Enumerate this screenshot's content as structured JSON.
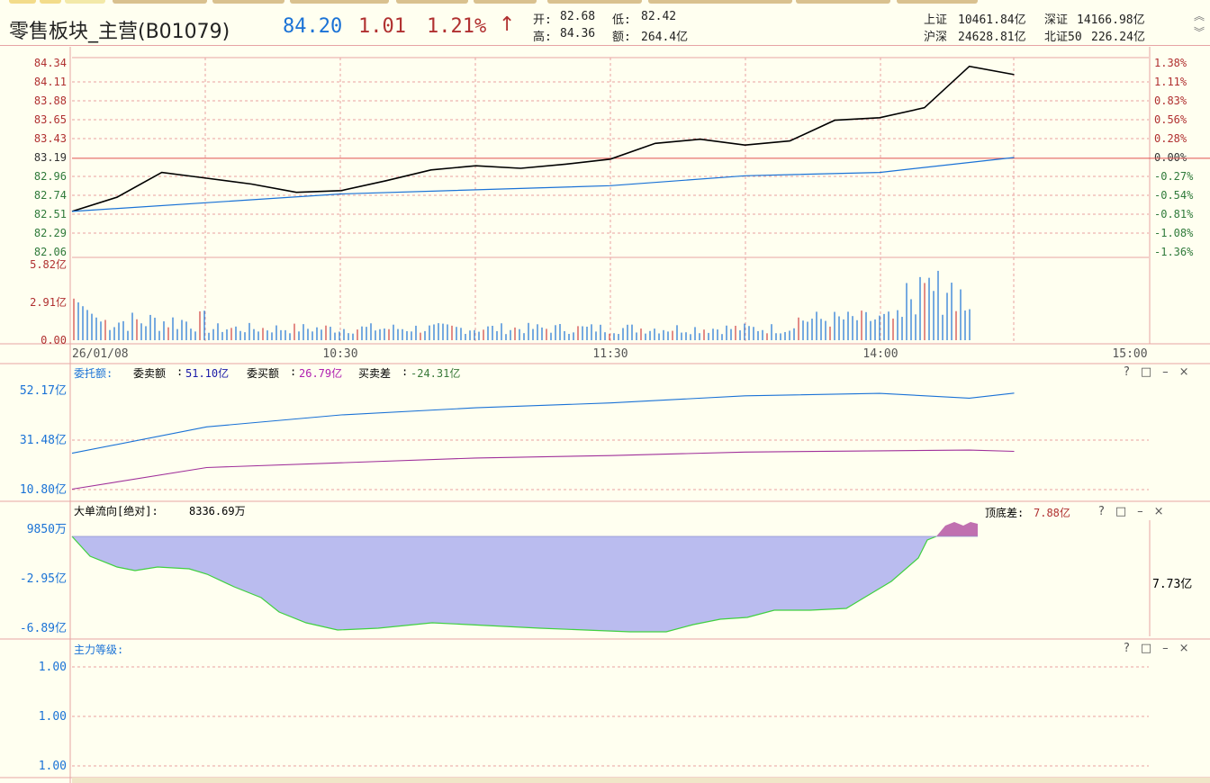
{
  "header": {
    "title": "零售板块_主营(B01079)",
    "price": "84.20",
    "change": "1.01",
    "change_pct": "1.21%",
    "arrow": "↑",
    "open_label": "开:",
    "open": "82.68",
    "low_label": "低:",
    "low": "82.42",
    "high_label": "高:",
    "high": "84.36",
    "amount_label": "额:",
    "amount": "264.4亿",
    "indices": [
      {
        "name": "上证",
        "value": "10461.84亿"
      },
      {
        "name": "深证",
        "value": "14166.98亿"
      },
      {
        "name": "沪深",
        "value": "24628.81亿"
      },
      {
        "name": "北证50",
        "value": "226.24亿"
      }
    ]
  },
  "chart_data": [
    {
      "type": "line",
      "series": [
        {
          "name": "price",
          "x": [
            "09:30",
            "09:40",
            "09:50",
            "10:00",
            "10:10",
            "10:20",
            "10:30",
            "10:40",
            "10:50",
            "11:00",
            "11:10",
            "11:20",
            "11:30",
            "13:10",
            "13:20",
            "13:30",
            "13:40",
            "13:50",
            "14:00",
            "14:10",
            "14:20",
            "14:30"
          ],
          "values": [
            82.55,
            82.72,
            83.02,
            82.95,
            82.88,
            82.78,
            82.8,
            82.92,
            83.05,
            83.1,
            83.07,
            83.12,
            83.18,
            83.37,
            83.42,
            83.35,
            83.4,
            83.65,
            83.68,
            83.8,
            84.3,
            84.2
          ]
        },
        {
          "name": "avg",
          "x": [
            "09:30",
            "10:30",
            "11:30",
            "13:30",
            "14:00",
            "14:30"
          ],
          "values": [
            82.55,
            82.76,
            82.86,
            82.98,
            83.02,
            83.2
          ]
        }
      ],
      "y_left_ticks": [
        "84.34",
        "84.11",
        "83.88",
        "83.65",
        "83.43",
        "83.19",
        "82.96",
        "82.74",
        "82.51",
        "82.29",
        "82.06"
      ],
      "y_right_ticks": [
        "1.38%",
        "1.11%",
        "0.83%",
        "0.56%",
        "0.28%",
        "0.00%",
        "-0.27%",
        "-0.54%",
        "-0.81%",
        "-1.08%",
        "-1.36%"
      ],
      "ylim": [
        82.06,
        84.34
      ],
      "reference_value": 83.19,
      "x_ticks": [
        "26/01/08",
        "10:30",
        "11:30",
        "14:00",
        "15:00"
      ]
    },
    {
      "type": "bar",
      "y_ticks": [
        "5.82亿",
        "2.91亿",
        "0.00"
      ],
      "ylim": [
        0,
        5.82
      ]
    },
    {
      "type": "line",
      "title": "委托额:",
      "legend": [
        {
          "name": "委卖额",
          "value": "51.10亿",
          "color": "#1a1aa8"
        },
        {
          "name": "委买额",
          "value": "26.79亿",
          "color": "#b020b0"
        },
        {
          "name": "买卖差",
          "value": "-24.31亿",
          "color": "#3a7a3a"
        }
      ],
      "y_ticks": [
        "52.17亿",
        "31.48亿",
        "10.80亿"
      ],
      "ylim": [
        10.8,
        52.17
      ],
      "series": [
        {
          "name": "委卖额",
          "x": [
            "09:30",
            "10:00",
            "10:30",
            "11:00",
            "11:30",
            "13:30",
            "14:00",
            "14:20",
            "14:30"
          ],
          "values": [
            26,
            37,
            42,
            45,
            47,
            50,
            51,
            49,
            51.1
          ]
        },
        {
          "name": "委买额",
          "x": [
            "09:30",
            "10:00",
            "10:30",
            "11:00",
            "11:30",
            "13:30",
            "14:00",
            "14:20",
            "14:30"
          ],
          "values": [
            11,
            20,
            22,
            24,
            25,
            26.5,
            27,
            27.3,
            26.8
          ]
        }
      ]
    },
    {
      "type": "area",
      "title": "大单流向[绝对]:",
      "title_value": "8336.69万",
      "extra_label": "顶底差:",
      "extra_value": "7.88亿",
      "side_value": "7.73亿",
      "y_ticks": [
        "9850万",
        "-2.95亿",
        "-6.89亿"
      ]
    },
    {
      "type": "line",
      "title": "主力等级:",
      "y_ticks": [
        "1.00",
        "1.00",
        "1.00"
      ]
    }
  ],
  "panel_controls": "?□–×"
}
